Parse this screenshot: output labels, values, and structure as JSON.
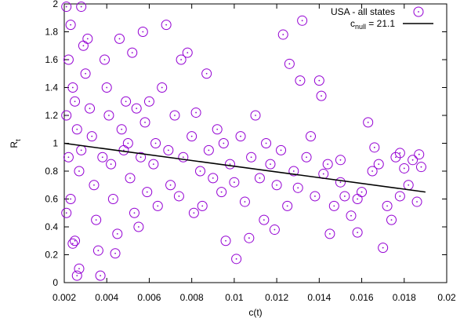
{
  "chart_data": {
    "type": "scatter",
    "x_label": "c(t)",
    "y_label": [
      "R",
      "t"
    ],
    "xlim": [
      0.002,
      0.02
    ],
    "ylim": [
      0,
      2
    ],
    "xticks": [
      0.002,
      0.004,
      0.006,
      0.008,
      0.01,
      0.012,
      0.014,
      0.016,
      0.018,
      0.02
    ],
    "yticks": [
      0,
      0.2,
      0.4,
      0.6,
      0.8,
      1,
      1.2,
      1.4,
      1.6,
      1.8,
      2
    ],
    "legend": "top-right",
    "series": [
      {
        "name": [
          "USA - all states"
        ],
        "color": "#9400d3",
        "marker": "circle",
        "x": [
          0.0021,
          0.0022,
          0.0023,
          0.0024,
          0.0021,
          0.0022,
          0.0023,
          0.0021,
          0.0024,
          0.0025,
          0.0026,
          0.0027,
          0.0028,
          0.0029,
          0.0025,
          0.0026,
          0.0027,
          0.0028,
          0.003,
          0.0031,
          0.0032,
          0.0033,
          0.0034,
          0.0035,
          0.0036,
          0.0037,
          0.0038,
          0.0039,
          0.004,
          0.0041,
          0.0042,
          0.0043,
          0.0044,
          0.0045,
          0.0046,
          0.0047,
          0.0048,
          0.0049,
          0.005,
          0.0051,
          0.0052,
          0.0053,
          0.0054,
          0.0055,
          0.0056,
          0.0057,
          0.0058,
          0.0059,
          0.006,
          0.0062,
          0.0063,
          0.0064,
          0.0066,
          0.0068,
          0.0069,
          0.007,
          0.0072,
          0.0074,
          0.0075,
          0.0076,
          0.0078,
          0.008,
          0.0081,
          0.0082,
          0.0084,
          0.0085,
          0.0087,
          0.0088,
          0.009,
          0.0092,
          0.0094,
          0.0095,
          0.0096,
          0.0098,
          0.01,
          0.0101,
          0.0103,
          0.0105,
          0.0107,
          0.0108,
          0.011,
          0.0112,
          0.0114,
          0.0115,
          0.0117,
          0.0119,
          0.012,
          0.0122,
          0.0123,
          0.0125,
          0.0126,
          0.0128,
          0.013,
          0.0131,
          0.0132,
          0.0134,
          0.0136,
          0.0138,
          0.014,
          0.0141,
          0.0142,
          0.0144,
          0.0145,
          0.0147,
          0.015,
          0.0152,
          0.0155,
          0.0158,
          0.016,
          0.0163,
          0.0165,
          0.0168,
          0.017,
          0.0172,
          0.0174,
          0.0176,
          0.0178,
          0.018,
          0.0182,
          0.0184,
          0.0186,
          0.0187,
          0.0188,
          0.0178,
          0.0166,
          0.0158,
          0.015
        ],
        "values": [
          1.98,
          1.6,
          1.85,
          1.4,
          1.2,
          0.9,
          0.6,
          0.5,
          0.28,
          0.3,
          0.05,
          0.1,
          1.98,
          1.7,
          1.3,
          1.1,
          0.8,
          0.95,
          1.5,
          1.75,
          1.25,
          1.05,
          0.7,
          0.45,
          0.23,
          0.05,
          0.9,
          1.6,
          1.4,
          1.2,
          0.85,
          0.6,
          0.21,
          0.35,
          1.75,
          1.1,
          0.95,
          1.3,
          1.0,
          0.75,
          1.65,
          0.5,
          1.25,
          0.4,
          0.9,
          1.8,
          1.15,
          0.65,
          1.3,
          0.85,
          1.0,
          0.55,
          1.4,
          1.85,
          0.95,
          0.7,
          1.2,
          0.62,
          1.6,
          0.9,
          1.65,
          1.05,
          0.5,
          1.22,
          0.8,
          0.55,
          1.5,
          0.95,
          0.75,
          1.1,
          0.65,
          1.0,
          0.3,
          0.85,
          0.72,
          0.17,
          1.05,
          0.58,
          0.32,
          0.9,
          1.2,
          0.75,
          0.45,
          1.0,
          0.85,
          0.38,
          0.7,
          0.95,
          1.78,
          0.55,
          1.57,
          0.8,
          0.68,
          1.45,
          1.88,
          0.9,
          1.05,
          0.62,
          1.45,
          1.34,
          0.78,
          0.85,
          0.35,
          0.55,
          0.72,
          0.62,
          0.48,
          0.36,
          0.65,
          1.15,
          0.8,
          0.85,
          0.25,
          0.55,
          0.45,
          0.9,
          0.62,
          0.82,
          0.7,
          0.88,
          0.58,
          0.92,
          0.83,
          0.93,
          0.97,
          0.6,
          0.88
        ]
      },
      {
        "name": [
          "c",
          "null",
          " = 21.1"
        ],
        "color": "#000000",
        "marker": "line",
        "x": [
          0.002,
          0.019
        ],
        "values": [
          1.0,
          0.65
        ]
      }
    ]
  }
}
